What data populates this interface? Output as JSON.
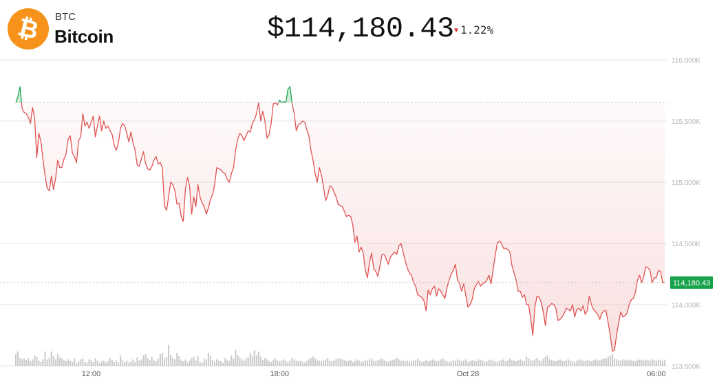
{
  "header": {
    "ticker": "BTC",
    "name": "Bitcoin",
    "price": "$114,180.43",
    "change": "1.22%",
    "change_direction": "down",
    "logo_icon": "bitcoin-logo-icon",
    "logo_symbol": "₿",
    "colors": {
      "logo": "#f7931a",
      "down": "#d9343a",
      "up": "#16a34a",
      "current_label_bg": "#16a34a"
    }
  },
  "chart_data": {
    "type": "line",
    "title": "",
    "xlabel": "",
    "ylabel": "",
    "y_tick_labels": [
      {
        "value": 116000,
        "label": "116.000K"
      },
      {
        "value": 115500,
        "label": "115.500K"
      },
      {
        "value": 115000,
        "label": "115.000K"
      },
      {
        "value": 114500,
        "label": "114.500K"
      },
      {
        "value": 114000,
        "label": "114.000K"
      },
      {
        "value": 113500,
        "label": "113.500K"
      }
    ],
    "x_tick_labels": [
      {
        "index": 36,
        "label": "12:00"
      },
      {
        "index": 126,
        "label": "18:00"
      },
      {
        "index": 216,
        "label": "Oct 28"
      },
      {
        "index": 306,
        "label": "06:00"
      }
    ],
    "ylim": [
      113500,
      116000
    ],
    "reference_price": 115650,
    "current_price": 114180.43,
    "current_price_label": "114,180.43",
    "line_color_above": "#16a34a",
    "line_color_below": "#e05252",
    "grid": true,
    "series": [
      {
        "values": [
          115650,
          115700,
          115780,
          115600,
          115570,
          115560,
          115530,
          115480,
          115610,
          115520,
          115200,
          115400,
          115330,
          115180,
          115050,
          114950,
          114930,
          115050,
          114940,
          115030,
          115180,
          115120,
          115120,
          115190,
          115230,
          115350,
          115380,
          115240,
          115210,
          115160,
          115340,
          115370,
          115560,
          115460,
          115490,
          115440,
          115490,
          115540,
          115370,
          115460,
          115540,
          115420,
          115500,
          115440,
          115460,
          115420,
          115390,
          115300,
          115260,
          115320,
          115440,
          115480,
          115460,
          115400,
          115330,
          115410,
          115320,
          115260,
          115140,
          115130,
          115190,
          115250,
          115150,
          115110,
          115100,
          115130,
          115180,
          115210,
          115150,
          115160,
          115120,
          114810,
          114770,
          114880,
          115000,
          114980,
          114930,
          114820,
          114830,
          114720,
          114680,
          114940,
          115040,
          114970,
          114740,
          114880,
          114800,
          114980,
          114880,
          114830,
          114800,
          114740,
          114790,
          114860,
          114900,
          114980,
          115120,
          115110,
          115100,
          115080,
          115070,
          115020,
          115000,
          115070,
          115120,
          115260,
          115350,
          115400,
          115380,
          115340,
          115380,
          115420,
          115410,
          115480,
          115510,
          115560,
          115650,
          115500,
          115580,
          115500,
          115360,
          115390,
          115480,
          115640,
          115650,
          115630,
          115670,
          115650,
          115660,
          115650,
          115760,
          115780,
          115640,
          115560,
          115420,
          115470,
          115480,
          115500,
          115490,
          115430,
          115380,
          115260,
          115180,
          115070,
          115000,
          115120,
          115060,
          114960,
          114850,
          114890,
          114970,
          114960,
          114920,
          114880,
          114820,
          114810,
          114800,
          114760,
          114720,
          114730,
          114720,
          114650,
          114510,
          114560,
          114430,
          114470,
          114420,
          114280,
          114220,
          114350,
          114420,
          114290,
          114270,
          114230,
          114320,
          114410,
          114410,
          114370,
          114330,
          114390,
          114410,
          114430,
          114410,
          114480,
          114500,
          114430,
          114360,
          114300,
          114260,
          114240,
          114180,
          114150,
          114080,
          114070,
          114060,
          114030,
          113950,
          114120,
          114080,
          114130,
          114150,
          114070,
          114130,
          114110,
          114080,
          114050,
          114140,
          114200,
          114250,
          114280,
          114330,
          114200,
          114170,
          114110,
          114170,
          114070,
          113980,
          114000,
          114040,
          114130,
          114160,
          114190,
          114150,
          114170,
          114180,
          114200,
          114240,
          114170,
          114280,
          114400,
          114500,
          114520,
          114500,
          114460,
          114460,
          114450,
          114430,
          114320,
          114260,
          114200,
          114110,
          114110,
          114060,
          114080,
          114000,
          114000,
          113880,
          113750,
          113980,
          114070,
          114060,
          114020,
          113940,
          113830,
          113980,
          113990,
          114010,
          114000,
          113970,
          113870,
          113880,
          113900,
          113930,
          113970,
          113960,
          113950,
          114000,
          113900,
          113960,
          113970,
          113950,
          113990,
          113920,
          113950,
          114070,
          114000,
          113960,
          113940,
          113920,
          113880,
          113930,
          113950,
          113950,
          113850,
          113750,
          113620,
          113630,
          113750,
          113850,
          113940,
          113900,
          113910,
          113930,
          114000,
          114040,
          114050,
          114100,
          114200,
          114240,
          114180,
          114230,
          114310,
          114300,
          114280,
          114180,
          114220,
          114220,
          114280,
          114270,
          114180,
          114180
        ]
      }
    ],
    "volume": {
      "values": [
        0.45,
        0.55,
        0.3,
        0.25,
        0.28,
        0.22,
        0.3,
        0.18,
        0.25,
        0.4,
        0.35,
        0.2,
        0.15,
        0.25,
        0.55,
        0.25,
        0.3,
        0.55,
        0.38,
        0.25,
        0.45,
        0.33,
        0.28,
        0.22,
        0.18,
        0.25,
        0.2,
        0.15,
        0.28,
        0.1,
        0.18,
        0.25,
        0.28,
        0.15,
        0.12,
        0.25,
        0.22,
        0.15,
        0.3,
        0.2,
        0.1,
        0.18,
        0.2,
        0.14,
        0.18,
        0.3,
        0.22,
        0.15,
        0.2,
        0.13,
        0.4,
        0.22,
        0.15,
        0.2,
        0.12,
        0.18,
        0.25,
        0.15,
        0.32,
        0.2,
        0.25,
        0.4,
        0.45,
        0.3,
        0.22,
        0.35,
        0.2,
        0.18,
        0.28,
        0.45,
        0.5,
        0.28,
        0.35,
        0.8,
        0.42,
        0.3,
        0.25,
        0.5,
        0.38,
        0.22,
        0.18,
        0.25,
        0.12,
        0.2,
        0.3,
        0.35,
        0.2,
        0.38,
        0.15,
        0.12,
        0.28,
        0.25,
        0.5,
        0.38,
        0.22,
        0.15,
        0.25,
        0.2,
        0.18,
        0.12,
        0.3,
        0.22,
        0.18,
        0.4,
        0.28,
        0.6,
        0.42,
        0.32,
        0.25,
        0.2,
        0.28,
        0.32,
        0.5,
        0.38,
        0.6,
        0.4,
        0.55,
        0.35,
        0.22,
        0.3,
        0.25,
        0.18,
        0.15,
        0.22,
        0.28,
        0.2,
        0.18,
        0.2,
        0.25,
        0.2,
        0.15,
        0.2,
        0.3,
        0.25,
        0.2,
        0.18,
        0.2,
        0.15,
        0.12,
        0.18,
        0.25,
        0.3,
        0.35,
        0.28,
        0.22,
        0.2,
        0.18,
        0.22,
        0.25,
        0.3,
        0.2,
        0.18,
        0.22,
        0.25,
        0.3,
        0.28,
        0.25,
        0.22,
        0.18,
        0.2,
        0.22,
        0.15,
        0.18,
        0.25,
        0.2,
        0.15,
        0.18,
        0.22,
        0.2,
        0.25,
        0.28,
        0.2,
        0.18,
        0.22,
        0.25,
        0.28,
        0.22,
        0.18,
        0.15,
        0.2,
        0.22,
        0.25,
        0.3,
        0.25,
        0.2,
        0.22,
        0.18,
        0.2,
        0.15,
        0.18,
        0.2,
        0.22,
        0.28,
        0.2,
        0.15,
        0.18,
        0.22,
        0.18,
        0.2,
        0.25,
        0.22,
        0.18,
        0.2,
        0.25,
        0.28,
        0.22,
        0.18,
        0.15,
        0.18,
        0.22,
        0.2,
        0.25,
        0.22,
        0.18,
        0.2,
        0.25,
        0.15,
        0.18,
        0.22,
        0.2,
        0.18,
        0.25,
        0.22,
        0.2,
        0.15,
        0.18,
        0.22,
        0.25,
        0.2,
        0.18,
        0.15,
        0.2,
        0.22,
        0.25,
        0.18,
        0.2,
        0.28,
        0.22,
        0.2,
        0.18,
        0.22,
        0.25,
        0.2,
        0.18,
        0.35,
        0.28,
        0.22,
        0.2,
        0.25,
        0.3,
        0.22,
        0.18,
        0.28,
        0.35,
        0.4,
        0.25,
        0.22,
        0.2,
        0.18,
        0.22,
        0.25,
        0.2,
        0.18,
        0.22,
        0.25,
        0.2,
        0.18,
        0.15,
        0.2,
        0.22,
        0.25,
        0.2,
        0.18,
        0.22,
        0.2,
        0.18,
        0.22,
        0.25,
        0.2,
        0.22,
        0.25,
        0.28,
        0.3,
        0.35,
        0.4,
        0.45,
        0.3,
        0.25,
        0.22,
        0.2,
        0.25,
        0.22,
        0.2,
        0.25,
        0.22,
        0.2,
        0.18,
        0.22,
        0.25,
        0.22,
        0.2,
        0.25,
        0.22,
        0.2,
        0.25,
        0.22,
        0.2,
        0.25,
        0.22,
        0.2,
        0.22
      ]
    }
  }
}
